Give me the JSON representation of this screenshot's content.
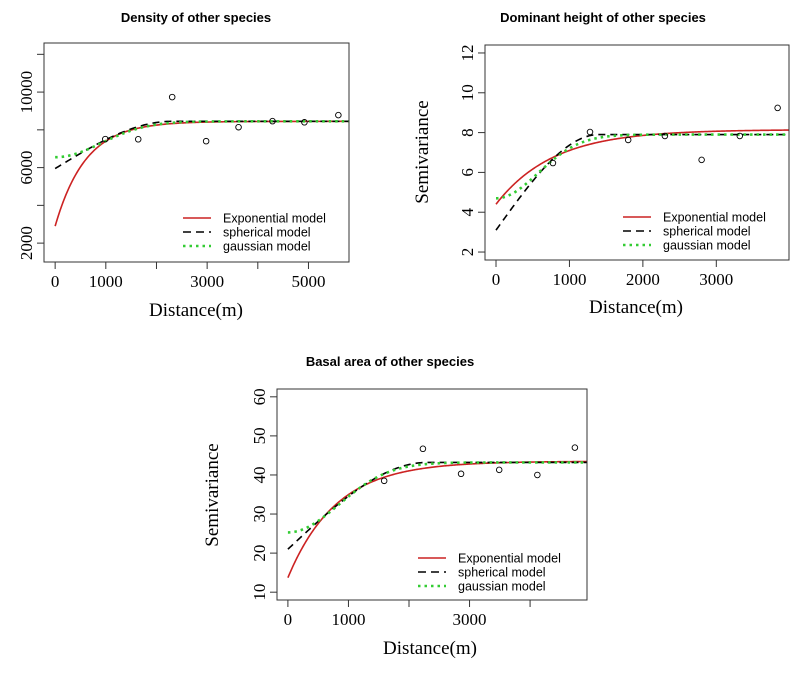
{
  "chart_data": [
    {
      "type": "scatter",
      "title": "Density of other species",
      "xlabel": "Distance(m)",
      "ylabel": "",
      "xlim": [
        -220,
        5800
      ],
      "ylim": [
        1000,
        12600
      ],
      "xticks": [
        0,
        1000,
        2000,
        3000,
        4000,
        5000
      ],
      "xtick_labels": [
        "0",
        "1000",
        "",
        "3000",
        "",
        "5000"
      ],
      "yticks": [
        2000,
        4000,
        6000,
        8000,
        10000,
        12000
      ],
      "ytick_labels": [
        "2000",
        "",
        "6000",
        "",
        "10000",
        ""
      ],
      "grid": false,
      "legend_placement": "bottom-right",
      "points": {
        "x": [
          990,
          1640,
          2310,
          2980,
          3620,
          4290,
          4920,
          5590
        ],
        "y": [
          7510,
          7500,
          9735,
          7400,
          8140,
          8460,
          8400,
          8780
        ]
      },
      "models": [
        {
          "name": "Exponential model",
          "kind": "exponential",
          "nugget": 2900,
          "sill": 8450,
          "range": 600,
          "color": "#cc2222",
          "style": "solid"
        },
        {
          "name": "spherical model",
          "kind": "spherical",
          "nugget": 5950,
          "sill": 8450,
          "range": 2300,
          "color": "#000000",
          "style": "dashed"
        },
        {
          "name": "gaussian model",
          "kind": "gaussian",
          "nugget": 6550,
          "sill": 8450,
          "range": 1290,
          "color": "#33cc33",
          "style": "dotted"
        }
      ]
    },
    {
      "type": "scatter",
      "title": "Dominant height of other species",
      "xlabel": "Distance(m)",
      "ylabel": "Semivariance",
      "xlim": [
        -150,
        3990
      ],
      "ylim": [
        1.6,
        12.4
      ],
      "xticks": [
        0,
        1000,
        2000,
        3000
      ],
      "xtick_labels": [
        "0",
        "1000",
        "2000",
        "3000"
      ],
      "yticks": [
        2,
        4,
        6,
        8,
        10,
        12
      ],
      "ytick_labels": [
        "2",
        "4",
        "6",
        "8",
        "10",
        "12"
      ],
      "grid": false,
      "legend_placement": "bottom-right",
      "points": {
        "x": [
          775,
          1280,
          1800,
          2300,
          2800,
          3320,
          3835
        ],
        "y": [
          6.47,
          8.03,
          7.63,
          7.83,
          6.63,
          7.83,
          9.24
        ]
      },
      "models": [
        {
          "name": "Exponential model",
          "kind": "exponential",
          "nugget": 4.4,
          "sill": 8.15,
          "range": 785,
          "color": "#cc2222",
          "style": "solid"
        },
        {
          "name": "spherical model",
          "kind": "spherical",
          "nugget": 3.1,
          "sill": 7.9,
          "range": 1400,
          "color": "#000000",
          "style": "dashed"
        },
        {
          "name": "gaussian model",
          "kind": "gaussian",
          "nugget": 4.7,
          "sill": 7.9,
          "range": 808,
          "color": "#33cc33",
          "style": "dotted"
        }
      ]
    },
    {
      "type": "scatter",
      "title": "Basal area of other species",
      "xlabel": "Distance(m)",
      "ylabel": "Semivariance",
      "xlim": [
        -180,
        4940
      ],
      "ylim": [
        8,
        62
      ],
      "xticks": [
        0,
        1000,
        2000,
        3000,
        4000
      ],
      "xtick_labels": [
        "0",
        "1000",
        "",
        "3000",
        ""
      ],
      "yticks": [
        10,
        20,
        30,
        40,
        50,
        60
      ],
      "ytick_labels": [
        "10",
        "20",
        "30",
        "40",
        "50",
        "60"
      ],
      "grid": false,
      "legend_placement": "bottom-right",
      "points": {
        "x": [
          1590,
          2230,
          2860,
          3490,
          4120,
          4740
        ],
        "y": [
          38.5,
          46.7,
          40.3,
          41.3,
          40.0,
          47.0
        ]
      },
      "models": [
        {
          "name": "Exponential model",
          "kind": "exponential",
          "nugget": 13.7,
          "sill": 43.5,
          "range": 800,
          "color": "#cc2222",
          "style": "solid"
        },
        {
          "name": "spherical model",
          "kind": "spherical",
          "nugget": 21,
          "sill": 43.2,
          "range": 2300,
          "color": "#000000",
          "style": "dashed"
        },
        {
          "name": "gaussian model",
          "kind": "gaussian",
          "nugget": 25.3,
          "sill": 43.2,
          "range": 1180,
          "color": "#33cc33",
          "style": "dotted"
        }
      ]
    }
  ]
}
